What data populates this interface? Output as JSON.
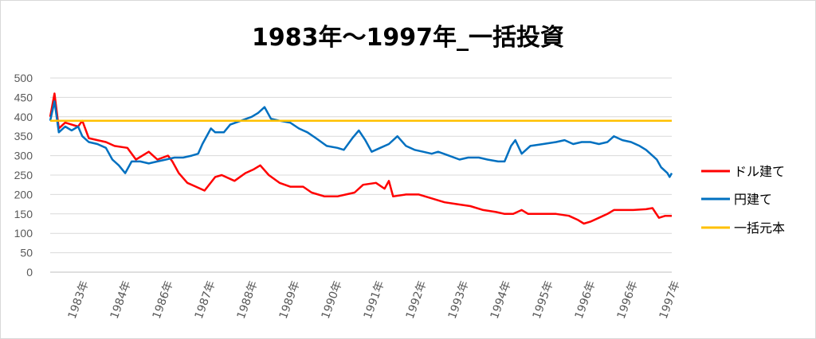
{
  "chart_data": {
    "type": "line",
    "title": "1983年～1997年_一括投資",
    "ylim": [
      0,
      500
    ],
    "yticks": [
      0,
      50,
      100,
      150,
      200,
      250,
      300,
      350,
      400,
      450,
      500
    ],
    "x_tick_labels": [
      "1983年",
      "1984年",
      "1986年",
      "1987年",
      "1988年",
      "1989年",
      "1990年",
      "1991年",
      "1992年",
      "1993年",
      "1994年",
      "1995年",
      "1996年",
      "1996年",
      "1997年"
    ],
    "x_range": [
      1983.0,
      1997.5
    ],
    "grid": true,
    "legend": "right",
    "series": [
      {
        "name": "ドル建て",
        "color": "#ff0000",
        "points": [
          [
            1983.0,
            400
          ],
          [
            1983.1,
            460
          ],
          [
            1983.2,
            370
          ],
          [
            1983.35,
            385
          ],
          [
            1983.5,
            380
          ],
          [
            1983.65,
            375
          ],
          [
            1983.75,
            390
          ],
          [
            1983.9,
            345
          ],
          [
            1984.1,
            340
          ],
          [
            1984.3,
            335
          ],
          [
            1984.5,
            325
          ],
          [
            1984.8,
            320
          ],
          [
            1985.0,
            290
          ],
          [
            1985.15,
            300
          ],
          [
            1985.3,
            310
          ],
          [
            1985.5,
            290
          ],
          [
            1985.75,
            300
          ],
          [
            1985.85,
            285
          ],
          [
            1986.0,
            255
          ],
          [
            1986.2,
            230
          ],
          [
            1986.4,
            220
          ],
          [
            1986.6,
            210
          ],
          [
            1986.85,
            245
          ],
          [
            1987.0,
            250
          ],
          [
            1987.3,
            235
          ],
          [
            1987.55,
            255
          ],
          [
            1987.75,
            265
          ],
          [
            1987.9,
            275
          ],
          [
            1988.1,
            250
          ],
          [
            1988.35,
            230
          ],
          [
            1988.6,
            220
          ],
          [
            1988.9,
            220
          ],
          [
            1989.1,
            205
          ],
          [
            1989.4,
            195
          ],
          [
            1989.7,
            195
          ],
          [
            1989.9,
            200
          ],
          [
            1990.1,
            205
          ],
          [
            1990.3,
            225
          ],
          [
            1990.6,
            230
          ],
          [
            1990.8,
            215
          ],
          [
            1990.9,
            235
          ],
          [
            1991.0,
            195
          ],
          [
            1991.3,
            200
          ],
          [
            1991.6,
            200
          ],
          [
            1991.9,
            190
          ],
          [
            1992.2,
            180
          ],
          [
            1992.5,
            175
          ],
          [
            1992.8,
            170
          ],
          [
            1993.1,
            160
          ],
          [
            1993.4,
            155
          ],
          [
            1993.6,
            150
          ],
          [
            1993.8,
            150
          ],
          [
            1994.0,
            160
          ],
          [
            1994.15,
            150
          ],
          [
            1994.5,
            150
          ],
          [
            1994.8,
            150
          ],
          [
            1995.1,
            145
          ],
          [
            1995.3,
            135
          ],
          [
            1995.45,
            125
          ],
          [
            1995.6,
            130
          ],
          [
            1995.8,
            140
          ],
          [
            1996.0,
            150
          ],
          [
            1996.15,
            160
          ],
          [
            1996.35,
            160
          ],
          [
            1996.6,
            160
          ],
          [
            1996.9,
            162
          ],
          [
            1997.05,
            165
          ],
          [
            1997.2,
            140
          ],
          [
            1997.35,
            145
          ],
          [
            1997.5,
            145
          ]
        ]
      },
      {
        "name": "円建て",
        "color": "#0070c0",
        "points": [
          [
            1983.0,
            390
          ],
          [
            1983.1,
            440
          ],
          [
            1983.2,
            360
          ],
          [
            1983.35,
            375
          ],
          [
            1983.5,
            365
          ],
          [
            1983.65,
            375
          ],
          [
            1983.75,
            350
          ],
          [
            1983.9,
            335
          ],
          [
            1984.1,
            330
          ],
          [
            1984.3,
            320
          ],
          [
            1984.45,
            290
          ],
          [
            1984.6,
            275
          ],
          [
            1984.75,
            255
          ],
          [
            1984.9,
            285
          ],
          [
            1985.1,
            285
          ],
          [
            1985.3,
            280
          ],
          [
            1985.5,
            285
          ],
          [
            1985.7,
            290
          ],
          [
            1985.9,
            295
          ],
          [
            1986.1,
            295
          ],
          [
            1986.3,
            300
          ],
          [
            1986.45,
            305
          ],
          [
            1986.55,
            330
          ],
          [
            1986.75,
            370
          ],
          [
            1986.85,
            360
          ],
          [
            1987.05,
            360
          ],
          [
            1987.2,
            380
          ],
          [
            1987.45,
            390
          ],
          [
            1987.7,
            400
          ],
          [
            1987.85,
            410
          ],
          [
            1988.0,
            425
          ],
          [
            1988.15,
            395
          ],
          [
            1988.35,
            390
          ],
          [
            1988.6,
            385
          ],
          [
            1988.8,
            370
          ],
          [
            1989.0,
            360
          ],
          [
            1989.2,
            345
          ],
          [
            1989.45,
            325
          ],
          [
            1989.7,
            320
          ],
          [
            1989.85,
            315
          ],
          [
            1990.05,
            345
          ],
          [
            1990.2,
            365
          ],
          [
            1990.35,
            340
          ],
          [
            1990.5,
            310
          ],
          [
            1990.7,
            320
          ],
          [
            1990.9,
            330
          ],
          [
            1991.1,
            350
          ],
          [
            1991.3,
            325
          ],
          [
            1991.5,
            315
          ],
          [
            1991.7,
            310
          ],
          [
            1991.9,
            305
          ],
          [
            1992.05,
            310
          ],
          [
            1992.3,
            300
          ],
          [
            1992.55,
            290
          ],
          [
            1992.75,
            295
          ],
          [
            1993.0,
            295
          ],
          [
            1993.2,
            290
          ],
          [
            1993.45,
            285
          ],
          [
            1993.6,
            285
          ],
          [
            1993.75,
            325
          ],
          [
            1993.85,
            340
          ],
          [
            1994.0,
            305
          ],
          [
            1994.2,
            325
          ],
          [
            1994.5,
            330
          ],
          [
            1994.8,
            335
          ],
          [
            1995.0,
            340
          ],
          [
            1995.2,
            330
          ],
          [
            1995.4,
            335
          ],
          [
            1995.6,
            335
          ],
          [
            1995.8,
            330
          ],
          [
            1996.0,
            335
          ],
          [
            1996.15,
            350
          ],
          [
            1996.35,
            340
          ],
          [
            1996.55,
            335
          ],
          [
            1996.75,
            325
          ],
          [
            1996.9,
            315
          ],
          [
            1997.05,
            300
          ],
          [
            1997.15,
            290
          ],
          [
            1997.25,
            270
          ],
          [
            1997.4,
            255
          ],
          [
            1997.45,
            245
          ],
          [
            1997.5,
            255
          ]
        ]
      },
      {
        "name": "一括元本",
        "color": "#ffc000",
        "points": [
          [
            1983.0,
            390
          ],
          [
            1997.5,
            390
          ]
        ]
      }
    ]
  }
}
